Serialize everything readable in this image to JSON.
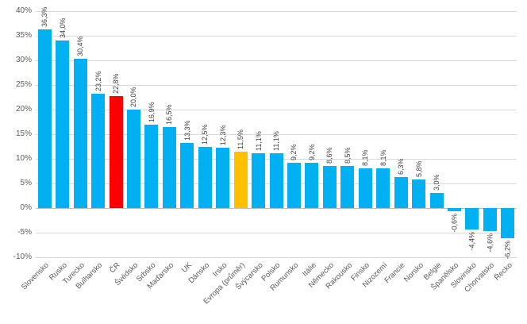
{
  "chart_data": {
    "type": "bar",
    "categories": [
      "Slovensko",
      "Rusko",
      "Turecko",
      "Bulharsko",
      "ČR",
      "Švédsko",
      "Srbsko",
      "Maďarsko",
      "UK",
      "Dánsko",
      "Irsko",
      "Evropa (průměr)",
      "Švýcarsko",
      "Polsko",
      "Rumunsko",
      "Itálie",
      "Německo",
      "Rakousko",
      "Finsko",
      "Nizozemí",
      "Francie",
      "Norsko",
      "Belgie",
      "Španělsko",
      "Slovinsko",
      "Chorvatsko",
      "Řecko"
    ],
    "values": [
      36.3,
      34.0,
      30.4,
      23.2,
      22.8,
      20.0,
      16.9,
      16.5,
      13.3,
      12.5,
      12.3,
      11.5,
      11.1,
      11.1,
      9.2,
      9.2,
      8.6,
      8.5,
      8.1,
      8.1,
      6.3,
      5.8,
      3.0,
      -0.6,
      -4.4,
      -4.6,
      -6.2
    ],
    "value_labels": [
      "36,3%",
      "34,0%",
      "30,4%",
      "23,2%",
      "22,8%",
      "20,0%",
      "16,9%",
      "16,5%",
      "13,3%",
      "12,5%",
      "12,3%",
      "11,5%",
      "11,1%",
      "11,1%",
      "9,2%",
      "9,2%",
      "8,6%",
      "8,5%",
      "8,1%",
      "8,1%",
      "6,3%",
      "5,8%",
      "3,0%",
      "-0,6%",
      "-4,4%",
      "-4,6%",
      "-6,2%"
    ],
    "y_ticks": [
      "40%",
      "35%",
      "30%",
      "25%",
      "20%",
      "15%",
      "10%",
      "5%",
      "0%",
      "-5%",
      "-10%"
    ],
    "ylim": [
      -10,
      40
    ],
    "grid": true,
    "legend": "none",
    "xlabel": "",
    "ylabel": "",
    "colors": {
      "default_bar": "#00B0F0",
      "highlights": {
        "ČR": "#FF0000",
        "Evropa (průměr)": "#FFC000"
      },
      "gridline": "#D9D9D9",
      "zero_line": "#BFBFBF",
      "axis_text": "#595959",
      "value_text": "#404040"
    }
  }
}
